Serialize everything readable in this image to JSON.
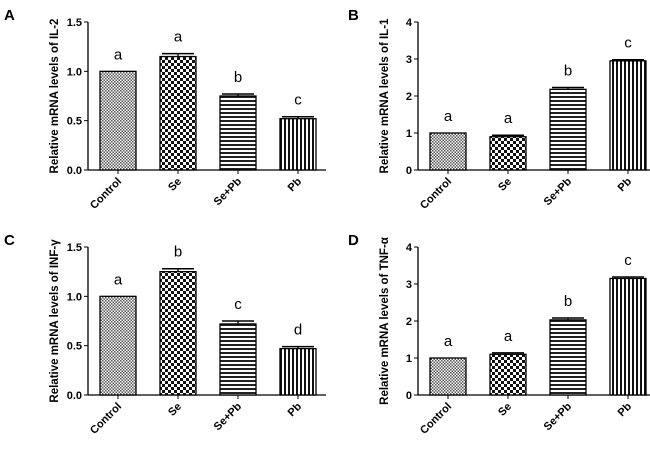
{
  "chart_data": [
    {
      "panel": "A",
      "type": "bar",
      "title": "",
      "ylabel": "Relative mRNA levels of IL-2",
      "xlabel": "",
      "categories": [
        "Control",
        "Se",
        "Se+Pb",
        "Pb"
      ],
      "values": [
        1.0,
        1.15,
        0.75,
        0.52
      ],
      "errors": [
        0,
        0.03,
        0.02,
        0.02
      ],
      "letters": [
        "a",
        "a",
        "b",
        "c"
      ],
      "ylim": [
        0,
        1.5
      ],
      "yticks": [
        "0.0",
        "0.5",
        "1.0",
        "1.5"
      ],
      "ytick_values": [
        0,
        0.5,
        1,
        1.5
      ],
      "grid": false
    },
    {
      "panel": "B",
      "type": "bar",
      "title": "",
      "ylabel": "Relative mRNA levels of IL-1",
      "xlabel": "",
      "categories": [
        "Control",
        "Se",
        "Se+Pb",
        "Pb"
      ],
      "values": [
        1.0,
        0.9,
        2.18,
        2.95
      ],
      "errors": [
        0,
        0.04,
        0.05,
        0.03
      ],
      "letters": [
        "a",
        "a",
        "b",
        "c"
      ],
      "ylim": [
        0,
        4
      ],
      "yticks": [
        "0",
        "1",
        "2",
        "3",
        "4"
      ],
      "ytick_values": [
        0,
        1,
        2,
        3,
        4
      ],
      "grid": false
    },
    {
      "panel": "C",
      "type": "bar",
      "title": "",
      "ylabel": "Relative mRNA levels of INF-γ",
      "xlabel": "",
      "categories": [
        "Control",
        "Se",
        "Se+Pb",
        "Pb"
      ],
      "values": [
        1.0,
        1.25,
        0.72,
        0.47
      ],
      "errors": [
        0,
        0.03,
        0.03,
        0.02
      ],
      "letters": [
        "a",
        "b",
        "c",
        "d"
      ],
      "ylim": [
        0,
        1.5
      ],
      "yticks": [
        "0.0",
        "0.5",
        "1.0",
        "1.5"
      ],
      "ytick_values": [
        0,
        0.5,
        1,
        1.5
      ],
      "grid": false
    },
    {
      "panel": "D",
      "type": "bar",
      "title": "",
      "ylabel": "Relative mRNA levels of TNF-α",
      "xlabel": "",
      "categories": [
        "Control",
        "Se",
        "Se+Pb",
        "Pb"
      ],
      "values": [
        1.0,
        1.1,
        2.03,
        3.15
      ],
      "errors": [
        0,
        0.04,
        0.05,
        0.04
      ],
      "letters": [
        "a",
        "a",
        "b",
        "c"
      ],
      "ylim": [
        0,
        4
      ],
      "yticks": [
        "0",
        "1",
        "2",
        "3",
        "4"
      ],
      "ytick_values": [
        0,
        1,
        2,
        3,
        4
      ],
      "grid": false
    }
  ]
}
